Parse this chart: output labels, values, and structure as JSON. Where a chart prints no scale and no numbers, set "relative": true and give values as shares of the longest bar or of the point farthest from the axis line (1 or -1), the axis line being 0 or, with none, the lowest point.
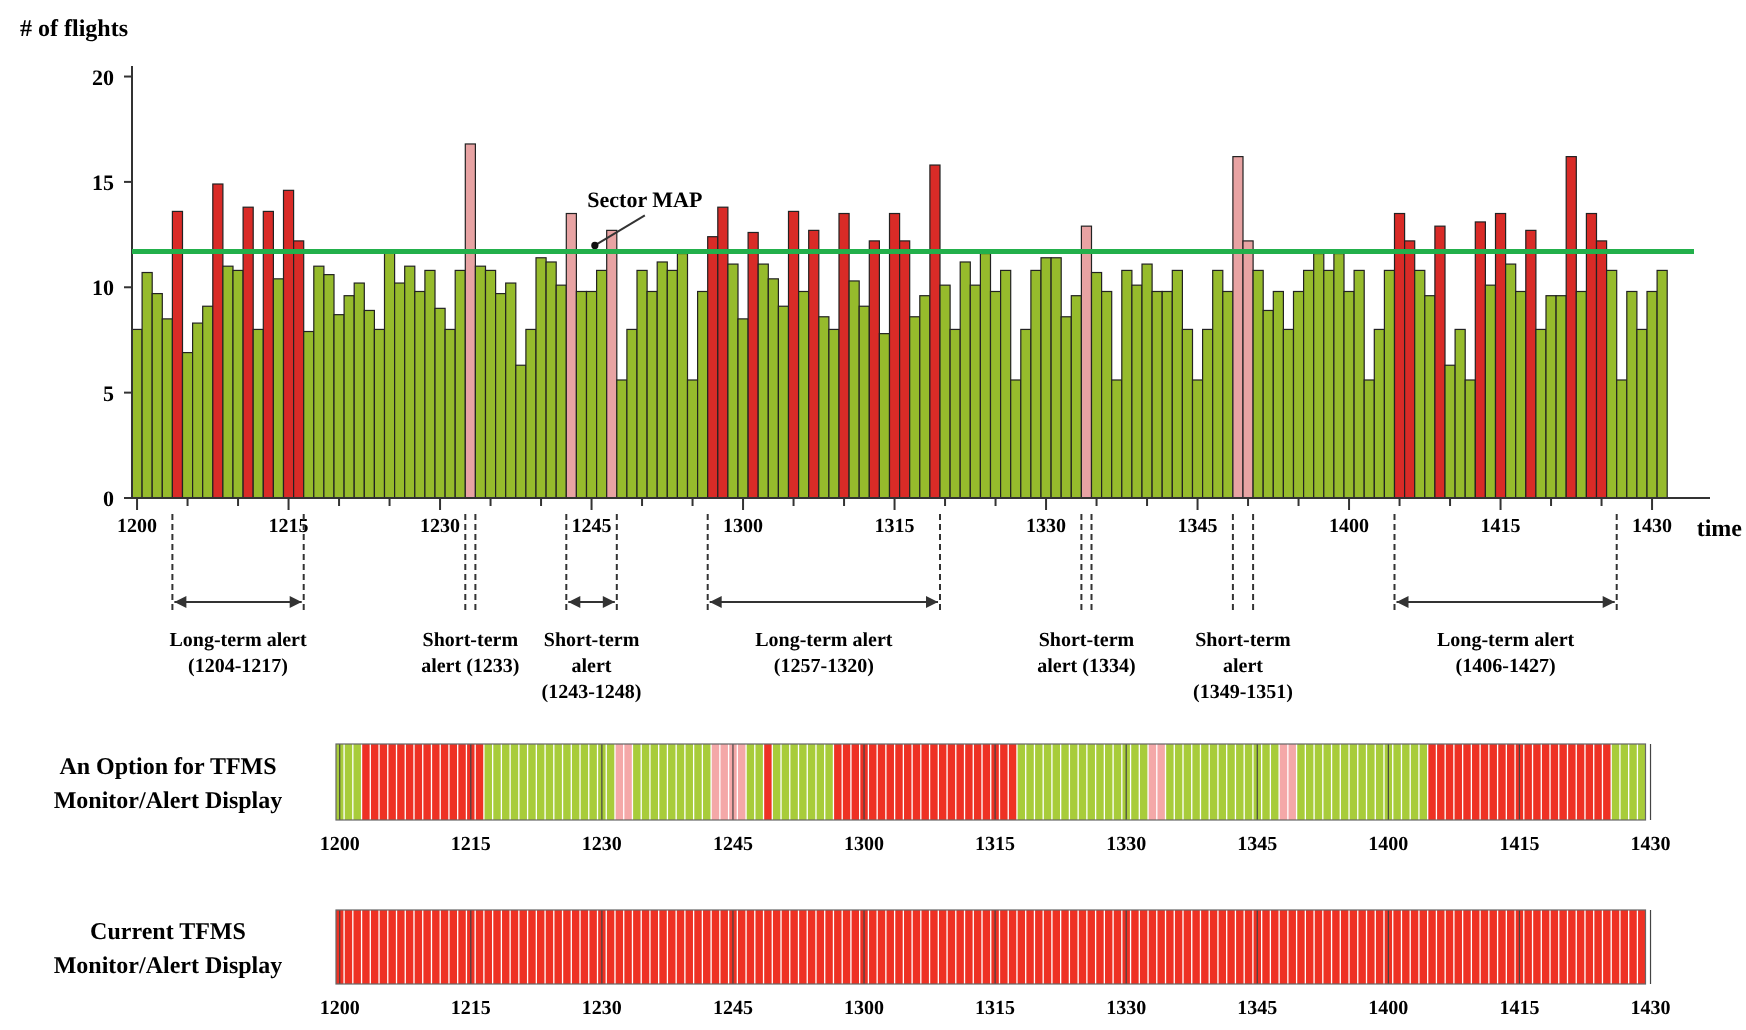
{
  "chart_data": [
    {
      "type": "bar",
      "xlabel": "time",
      "ylabel": "# of flights",
      "categories": [
        "1200",
        null,
        null,
        null,
        null,
        null,
        null,
        null,
        null,
        null,
        null,
        null,
        null,
        null,
        null,
        "1215",
        null,
        null,
        null,
        null,
        null,
        null,
        null,
        null,
        null,
        null,
        null,
        null,
        null,
        null,
        "1230",
        null,
        null,
        null,
        null,
        null,
        null,
        null,
        null,
        null,
        null,
        null,
        null,
        null,
        null,
        "1245",
        null,
        null,
        null,
        null,
        null,
        null,
        null,
        null,
        null,
        null,
        null,
        null,
        null,
        null,
        "1300",
        null,
        null,
        null,
        null,
        null,
        null,
        null,
        null,
        null,
        null,
        null,
        null,
        null,
        null,
        "1315",
        null,
        null,
        null,
        null,
        null,
        null,
        null,
        null,
        null,
        null,
        null,
        null,
        null,
        null,
        "1330",
        null,
        null,
        null,
        null,
        null,
        null,
        null,
        null,
        null,
        null,
        null,
        null,
        null,
        null,
        "1345",
        null,
        null,
        null,
        null,
        null,
        null,
        null,
        null,
        null,
        null,
        null,
        null,
        null,
        null,
        "1400",
        null,
        null,
        null,
        null,
        null,
        null,
        null,
        null,
        null,
        null,
        null,
        null,
        null,
        null,
        "1415",
        null,
        null,
        null,
        null,
        null,
        null,
        null,
        null,
        null,
        null,
        null,
        null,
        null,
        null,
        "1430",
        null
      ],
      "values": [
        8,
        10.7,
        9.7,
        8.5,
        13.6,
        6.9,
        8.3,
        9.1,
        14.9,
        11,
        10.8,
        13.8,
        8,
        13.6,
        10.4,
        14.6,
        12.2,
        7.9,
        11,
        10.6,
        8.7,
        9.6,
        10.2,
        8.9,
        8,
        11.7,
        10.2,
        11,
        9.8,
        10.8,
        9,
        8,
        10.8,
        16.8,
        11,
        10.8,
        9.7,
        10.2,
        6.3,
        8,
        11.4,
        11.2,
        10.1,
        13.5,
        9.8,
        9.8,
        10.8,
        12.7,
        5.6,
        8,
        10.8,
        9.8,
        11.2,
        10.8,
        11.6,
        5.6,
        9.8,
        12.4,
        13.8,
        11.1,
        8.5,
        12.6,
        11.1,
        10.4,
        9.1,
        13.6,
        9.8,
        12.7,
        8.6,
        8,
        13.5,
        10.3,
        9.1,
        12.2,
        7.8,
        13.5,
        12.2,
        8.6,
        9.6,
        15.8,
        10.1,
        8,
        11.2,
        10.1,
        11.6,
        9.8,
        10.8,
        5.6,
        8,
        10.8,
        11.4,
        11.4,
        8.6,
        9.6,
        12.9,
        10.7,
        9.8,
        5.6,
        10.8,
        10.1,
        11.1,
        9.8,
        9.8,
        10.8,
        8,
        5.6,
        8,
        10.8,
        9.8,
        16.2,
        12.2,
        10.8,
        8.9,
        9.8,
        8,
        9.8,
        10.8,
        11.6,
        10.8,
        11.6,
        9.8,
        10.8,
        5.6,
        8,
        10.8,
        13.5,
        12.2,
        10.8,
        9.6,
        12.9,
        6.3,
        8,
        5.6,
        13.1,
        10.1,
        13.5,
        11.1,
        9.8,
        12.7,
        8,
        9.6,
        9.6,
        16.2,
        9.8,
        13.5,
        12.2,
        10.8,
        5.6,
        9.8,
        8,
        9.8,
        10.8
      ],
      "colors": [
        "#96bb2c",
        "#96bb2c",
        "#96bb2c",
        "#96bb2c",
        "#d92b27",
        "#96bb2c",
        "#96bb2c",
        "#96bb2c",
        "#d92b27",
        "#96bb2c",
        "#96bb2c",
        "#d92b27",
        "#96bb2c",
        "#d92b27",
        "#96bb2c",
        "#d92b27",
        "#d92b27",
        "#96bb2c",
        "#96bb2c",
        "#96bb2c",
        "#96bb2c",
        "#96bb2c",
        "#96bb2c",
        "#96bb2c",
        "#96bb2c",
        "#96bb2c",
        "#96bb2c",
        "#96bb2c",
        "#96bb2c",
        "#96bb2c",
        "#96bb2c",
        "#96bb2c",
        "#96bb2c",
        "#e8a3a3",
        "#96bb2c",
        "#96bb2c",
        "#96bb2c",
        "#96bb2c",
        "#96bb2c",
        "#96bb2c",
        "#96bb2c",
        "#96bb2c",
        "#96bb2c",
        "#e8a3a3",
        "#96bb2c",
        "#96bb2c",
        "#96bb2c",
        "#e8a3a3",
        "#96bb2c",
        "#96bb2c",
        "#96bb2c",
        "#96bb2c",
        "#96bb2c",
        "#96bb2c",
        "#96bb2c",
        "#96bb2c",
        "#96bb2c",
        "#d92b27",
        "#d92b27",
        "#96bb2c",
        "#96bb2c",
        "#d92b27",
        "#96bb2c",
        "#96bb2c",
        "#96bb2c",
        "#d92b27",
        "#96bb2c",
        "#d92b27",
        "#96bb2c",
        "#96bb2c",
        "#d92b27",
        "#96bb2c",
        "#96bb2c",
        "#d92b27",
        "#96bb2c",
        "#d92b27",
        "#d92b27",
        "#96bb2c",
        "#96bb2c",
        "#d92b27",
        "#96bb2c",
        "#96bb2c",
        "#96bb2c",
        "#96bb2c",
        "#96bb2c",
        "#96bb2c",
        "#96bb2c",
        "#96bb2c",
        "#96bb2c",
        "#96bb2c",
        "#96bb2c",
        "#96bb2c",
        "#96bb2c",
        "#96bb2c",
        "#e8a3a3",
        "#96bb2c",
        "#96bb2c",
        "#96bb2c",
        "#96bb2c",
        "#96bb2c",
        "#96bb2c",
        "#96bb2c",
        "#96bb2c",
        "#96bb2c",
        "#96bb2c",
        "#96bb2c",
        "#96bb2c",
        "#96bb2c",
        "#96bb2c",
        "#e8a3a3",
        "#e8a3a3",
        "#96bb2c",
        "#96bb2c",
        "#96bb2c",
        "#96bb2c",
        "#96bb2c",
        "#96bb2c",
        "#96bb2c",
        "#96bb2c",
        "#96bb2c",
        "#96bb2c",
        "#96bb2c",
        "#96bb2c",
        "#96bb2c",
        "#96bb2c",
        "#d92b27",
        "#d92b27",
        "#96bb2c",
        "#96bb2c",
        "#d92b27",
        "#96bb2c",
        "#96bb2c",
        "#96bb2c",
        "#d92b27",
        "#96bb2c",
        "#d92b27",
        "#96bb2c",
        "#96bb2c",
        "#d92b27",
        "#96bb2c",
        "#96bb2c",
        "#96bb2c",
        "#d92b27",
        "#96bb2c",
        "#d92b27",
        "#d92b27",
        "#96bb2c",
        "#96bb2c",
        "#96bb2c",
        "#96bb2c",
        "#96bb2c",
        "#96bb2c"
      ],
      "ylim": [
        0,
        20.5
      ],
      "yticks": [
        0,
        5,
        10,
        15,
        20
      ],
      "ref_lines": [
        {
          "axis": "y",
          "value": 11.7,
          "label": "Sector MAP",
          "color": "#22b04b"
        }
      ],
      "annotations": [
        "Long-term alert (1204-1217)",
        "Short-term alert (1233)",
        "Short-term alert (1243-1248)",
        "Long-term alert (1257-1320)",
        "Short-term alert (1334)",
        "Short-term alert (1349-1351)",
        "Long-term alert (1406-1427)"
      ]
    },
    {
      "type": "bar",
      "relative": true,
      "ylabel": "An Option for TFMS Monitor/Alert Display",
      "grid": "x",
      "categories": [
        "1200",
        null,
        null,
        null,
        null,
        null,
        null,
        null,
        null,
        null,
        null,
        null,
        null,
        null,
        null,
        "1215",
        null,
        null,
        null,
        null,
        null,
        null,
        null,
        null,
        null,
        null,
        null,
        null,
        null,
        null,
        "1230",
        null,
        null,
        null,
        null,
        null,
        null,
        null,
        null,
        null,
        null,
        null,
        null,
        null,
        null,
        "1245",
        null,
        null,
        null,
        null,
        null,
        null,
        null,
        null,
        null,
        null,
        null,
        null,
        null,
        null,
        "1300",
        null,
        null,
        null,
        null,
        null,
        null,
        null,
        null,
        null,
        null,
        null,
        null,
        null,
        null,
        "1315",
        null,
        null,
        null,
        null,
        null,
        null,
        null,
        null,
        null,
        null,
        null,
        null,
        null,
        null,
        "1330",
        null,
        null,
        null,
        null,
        null,
        null,
        null,
        null,
        null,
        null,
        null,
        null,
        null,
        null,
        "1345",
        null,
        null,
        null,
        null,
        null,
        null,
        null,
        null,
        null,
        null,
        null,
        null,
        null,
        null,
        "1400",
        null,
        null,
        null,
        null,
        null,
        null,
        null,
        null,
        null,
        null,
        null,
        null,
        null,
        null,
        "1415",
        null,
        null,
        null,
        null,
        null,
        null,
        null,
        null,
        null,
        null,
        null,
        null,
        null,
        null,
        "1430"
      ],
      "values": [
        1,
        1,
        1,
        1,
        1,
        1,
        1,
        1,
        1,
        1,
        1,
        1,
        1,
        1,
        1,
        1,
        1,
        1,
        1,
        1,
        1,
        1,
        1,
        1,
        1,
        1,
        1,
        1,
        1,
        1,
        1,
        1,
        1,
        1,
        1,
        1,
        1,
        1,
        1,
        1,
        1,
        1,
        1,
        1,
        1,
        1,
        1,
        1,
        1,
        1,
        1,
        1,
        1,
        1,
        1,
        1,
        1,
        1,
        1,
        1,
        1,
        1,
        1,
        1,
        1,
        1,
        1,
        1,
        1,
        1,
        1,
        1,
        1,
        1,
        1,
        1,
        1,
        1,
        1,
        1,
        1,
        1,
        1,
        1,
        1,
        1,
        1,
        1,
        1,
        1,
        1,
        1,
        1,
        1,
        1,
        1,
        1,
        1,
        1,
        1,
        1,
        1,
        1,
        1,
        1,
        1,
        1,
        1,
        1,
        1,
        1,
        1,
        1,
        1,
        1,
        1,
        1,
        1,
        1,
        1,
        1,
        1,
        1,
        1,
        1,
        1,
        1,
        1,
        1,
        1,
        1,
        1,
        1,
        1,
        1,
        1,
        1,
        1,
        1,
        1,
        1,
        1,
        1,
        1,
        1,
        1,
        1,
        1,
        1,
        1,
        null
      ],
      "colors": [
        "#a8cc3a",
        "#a8cc3a",
        "#a8cc3a",
        "#ee3124",
        "#ee3124",
        "#ee3124",
        "#ee3124",
        "#ee3124",
        "#ee3124",
        "#ee3124",
        "#ee3124",
        "#ee3124",
        "#ee3124",
        "#ee3124",
        "#ee3124",
        "#ee3124",
        "#ee3124",
        "#a8cc3a",
        "#a8cc3a",
        "#a8cc3a",
        "#a8cc3a",
        "#a8cc3a",
        "#a8cc3a",
        "#a8cc3a",
        "#a8cc3a",
        "#a8cc3a",
        "#a8cc3a",
        "#a8cc3a",
        "#a8cc3a",
        "#a8cc3a",
        "#a8cc3a",
        "#a8cc3a",
        "#f4a8a8",
        "#f4a8a8",
        "#a8cc3a",
        "#a8cc3a",
        "#a8cc3a",
        "#a8cc3a",
        "#a8cc3a",
        "#a8cc3a",
        "#a8cc3a",
        "#a8cc3a",
        "#a8cc3a",
        "#f4a8a8",
        "#f4a8a8",
        "#f4a8a8",
        "#f4a8a8",
        "#a8cc3a",
        "#a8cc3a",
        "#ee3124",
        "#a8cc3a",
        "#a8cc3a",
        "#a8cc3a",
        "#a8cc3a",
        "#a8cc3a",
        "#a8cc3a",
        "#a8cc3a",
        "#ee3124",
        "#ee3124",
        "#ee3124",
        "#ee3124",
        "#ee3124",
        "#ee3124",
        "#ee3124",
        "#ee3124",
        "#ee3124",
        "#ee3124",
        "#ee3124",
        "#ee3124",
        "#ee3124",
        "#ee3124",
        "#ee3124",
        "#ee3124",
        "#ee3124",
        "#ee3124",
        "#ee3124",
        "#ee3124",
        "#ee3124",
        "#a8cc3a",
        "#a8cc3a",
        "#a8cc3a",
        "#a8cc3a",
        "#a8cc3a",
        "#a8cc3a",
        "#a8cc3a",
        "#a8cc3a",
        "#a8cc3a",
        "#a8cc3a",
        "#a8cc3a",
        "#a8cc3a",
        "#a8cc3a",
        "#a8cc3a",
        "#a8cc3a",
        "#f4a8a8",
        "#f4a8a8",
        "#a8cc3a",
        "#a8cc3a",
        "#a8cc3a",
        "#a8cc3a",
        "#a8cc3a",
        "#a8cc3a",
        "#a8cc3a",
        "#a8cc3a",
        "#a8cc3a",
        "#a8cc3a",
        "#a8cc3a",
        "#a8cc3a",
        "#a8cc3a",
        "#f4a8a8",
        "#f4a8a8",
        "#a8cc3a",
        "#a8cc3a",
        "#a8cc3a",
        "#a8cc3a",
        "#a8cc3a",
        "#a8cc3a",
        "#a8cc3a",
        "#a8cc3a",
        "#a8cc3a",
        "#a8cc3a",
        "#a8cc3a",
        "#a8cc3a",
        "#a8cc3a",
        "#a8cc3a",
        "#a8cc3a",
        "#ee3124",
        "#ee3124",
        "#ee3124",
        "#ee3124",
        "#ee3124",
        "#ee3124",
        "#ee3124",
        "#ee3124",
        "#ee3124",
        "#ee3124",
        "#ee3124",
        "#ee3124",
        "#ee3124",
        "#ee3124",
        "#ee3124",
        "#ee3124",
        "#ee3124",
        "#ee3124",
        "#ee3124",
        "#ee3124",
        "#ee3124",
        "#a8cc3a",
        "#a8cc3a",
        "#a8cc3a",
        "#a8cc3a",
        null
      ]
    },
    {
      "type": "bar",
      "relative": true,
      "ylabel": "Current TFMS Monitor/Alert Display",
      "grid": "x",
      "color": "#ee3124",
      "categories": [
        "1200",
        null,
        null,
        null,
        null,
        null,
        null,
        null,
        null,
        null,
        null,
        null,
        null,
        null,
        null,
        "1215",
        null,
        null,
        null,
        null,
        null,
        null,
        null,
        null,
        null,
        null,
        null,
        null,
        null,
        null,
        "1230",
        null,
        null,
        null,
        null,
        null,
        null,
        null,
        null,
        null,
        null,
        null,
        null,
        null,
        null,
        "1245",
        null,
        null,
        null,
        null,
        null,
        null,
        null,
        null,
        null,
        null,
        null,
        null,
        null,
        null,
        "1300",
        null,
        null,
        null,
        null,
        null,
        null,
        null,
        null,
        null,
        null,
        null,
        null,
        null,
        null,
        "1315",
        null,
        null,
        null,
        null,
        null,
        null,
        null,
        null,
        null,
        null,
        null,
        null,
        null,
        null,
        "1330",
        null,
        null,
        null,
        null,
        null,
        null,
        null,
        null,
        null,
        null,
        null,
        null,
        null,
        null,
        "1345",
        null,
        null,
        null,
        null,
        null,
        null,
        null,
        null,
        null,
        null,
        null,
        null,
        null,
        null,
        "1400",
        null,
        null,
        null,
        null,
        null,
        null,
        null,
        null,
        null,
        null,
        null,
        null,
        null,
        null,
        "1415",
        null,
        null,
        null,
        null,
        null,
        null,
        null,
        null,
        null,
        null,
        null,
        null,
        null,
        null,
        "1430"
      ],
      "values": [
        1,
        1,
        1,
        1,
        1,
        1,
        1,
        1,
        1,
        1,
        1,
        1,
        1,
        1,
        1,
        1,
        1,
        1,
        1,
        1,
        1,
        1,
        1,
        1,
        1,
        1,
        1,
        1,
        1,
        1,
        1,
        1,
        1,
        1,
        1,
        1,
        1,
        1,
        1,
        1,
        1,
        1,
        1,
        1,
        1,
        1,
        1,
        1,
        1,
        1,
        1,
        1,
        1,
        1,
        1,
        1,
        1,
        1,
        1,
        1,
        1,
        1,
        1,
        1,
        1,
        1,
        1,
        1,
        1,
        1,
        1,
        1,
        1,
        1,
        1,
        1,
        1,
        1,
        1,
        1,
        1,
        1,
        1,
        1,
        1,
        1,
        1,
        1,
        1,
        1,
        1,
        1,
        1,
        1,
        1,
        1,
        1,
        1,
        1,
        1,
        1,
        1,
        1,
        1,
        1,
        1,
        1,
        1,
        1,
        1,
        1,
        1,
        1,
        1,
        1,
        1,
        1,
        1,
        1,
        1,
        1,
        1,
        1,
        1,
        1,
        1,
        1,
        1,
        1,
        1,
        1,
        1,
        1,
        1,
        1,
        1,
        1,
        1,
        1,
        1,
        1,
        1,
        1,
        1,
        1,
        1,
        1,
        1,
        1,
        1,
        null
      ]
    }
  ]
}
